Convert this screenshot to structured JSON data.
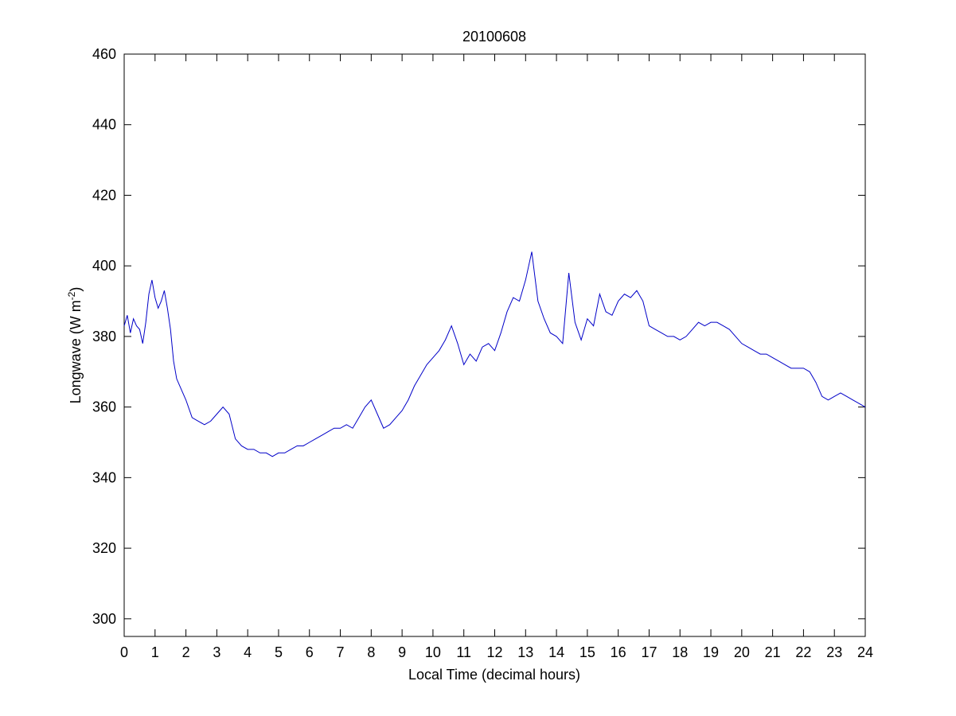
{
  "chart_data": {
    "type": "line",
    "title": "20100608",
    "xlabel": "Local Time (decimal hours)",
    "ylabel": {
      "main": "Longwave (W m",
      "superscript": "-2",
      "close": ")"
    },
    "xlim": [
      0,
      24
    ],
    "ylim": [
      295,
      460
    ],
    "x_ticks": [
      0,
      1,
      2,
      3,
      4,
      5,
      6,
      7,
      8,
      9,
      10,
      11,
      12,
      13,
      14,
      15,
      16,
      17,
      18,
      19,
      20,
      21,
      22,
      23,
      24
    ],
    "x_tick_labels": [
      "0",
      "1",
      "2",
      "3",
      "4",
      "5",
      "6",
      "7",
      "8",
      "9",
      "10",
      "11",
      "12",
      "13",
      "14",
      "15",
      "16",
      "17",
      "18",
      "19",
      "20",
      "21",
      "22",
      "23",
      "24"
    ],
    "y_ticks": [
      300,
      320,
      340,
      360,
      380,
      400,
      420,
      440,
      460
    ],
    "y_tick_labels": [
      "300",
      "320",
      "340",
      "360",
      "380",
      "400",
      "420",
      "440",
      "460"
    ],
    "grid": false,
    "series_color": "#0000c8",
    "series": [
      {
        "x": [
          0,
          0.1,
          0.2,
          0.3,
          0.4,
          0.5,
          0.6,
          0.7,
          0.8,
          0.9,
          1.0,
          1.1,
          1.2,
          1.3,
          1.4,
          1.5,
          1.6,
          1.7,
          1.8,
          1.9,
          2.0,
          2.2,
          2.4,
          2.6,
          2.8,
          3.0,
          3.2,
          3.4,
          3.6,
          3.8,
          4.0,
          4.2,
          4.4,
          4.6,
          4.8,
          5.0,
          5.2,
          5.4,
          5.6,
          5.8,
          6.0,
          6.2,
          6.4,
          6.6,
          6.8,
          7.0,
          7.2,
          7.4,
          7.6,
          7.8,
          8.0,
          8.2,
          8.4,
          8.6,
          8.8,
          9.0,
          9.2,
          9.4,
          9.6,
          9.8,
          10.0,
          10.2,
          10.4,
          10.6,
          10.8,
          11.0,
          11.2,
          11.4,
          11.6,
          11.8,
          12.0,
          12.2,
          12.4,
          12.6,
          12.8,
          13.0,
          13.2,
          13.4,
          13.6,
          13.8,
          14.0,
          14.2,
          14.4,
          14.6,
          14.8,
          15.0,
          15.2,
          15.4,
          15.6,
          15.8,
          16.0,
          16.2,
          16.4,
          16.6,
          16.8,
          17.0,
          17.2,
          17.4,
          17.6,
          17.8,
          18.0,
          18.2,
          18.4,
          18.6,
          18.8,
          19.0,
          19.2,
          19.4,
          19.6,
          19.8,
          20.0,
          20.2,
          20.4,
          20.6,
          20.8,
          21.0,
          21.2,
          21.4,
          21.6,
          21.8,
          22.0,
          22.2,
          22.4,
          22.6,
          22.8,
          23.0,
          23.2,
          23.4,
          23.6,
          23.8,
          24.0
        ],
        "y": [
          383,
          386,
          381,
          385,
          383,
          382,
          378,
          384,
          392,
          396,
          391,
          388,
          390,
          393,
          388,
          382,
          373,
          368,
          366,
          364,
          362,
          357,
          356,
          355,
          356,
          358,
          360,
          358,
          351,
          349,
          348,
          348,
          347,
          347,
          346,
          347,
          347,
          348,
          349,
          349,
          350,
          351,
          352,
          353,
          354,
          354,
          355,
          354,
          357,
          360,
          362,
          358,
          354,
          355,
          357,
          359,
          362,
          366,
          369,
          372,
          374,
          376,
          379,
          383,
          378,
          372,
          375,
          373,
          377,
          378,
          376,
          381,
          387,
          391,
          390,
          396,
          404,
          390,
          385,
          381,
          380,
          378,
          398,
          384,
          379,
          385,
          383,
          392,
          387,
          386,
          390,
          392,
          391,
          393,
          390,
          383,
          382,
          381,
          380,
          380,
          379,
          380,
          382,
          384,
          383,
          384,
          384,
          383,
          382,
          380,
          378,
          377,
          376,
          375,
          375,
          374,
          373,
          372,
          371,
          371,
          371,
          370,
          367,
          363,
          362,
          363,
          364,
          363,
          362,
          361,
          360
        ]
      }
    ]
  }
}
